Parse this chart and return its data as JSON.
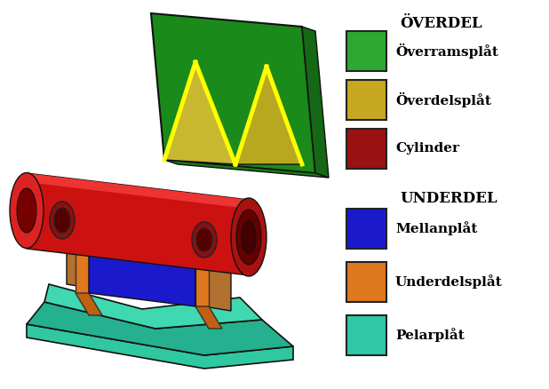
{
  "background_color": "#ffffff",
  "section1_header": "ÖVERDEL",
  "section2_header": "UNDERDEL",
  "items_top": [
    {
      "label": "Överramsplåt",
      "color": "#2ea82e"
    },
    {
      "label": "Överdelsplåt",
      "color": "#c8a820"
    },
    {
      "label": "Cylinder",
      "color": "#991111"
    }
  ],
  "items_bottom": [
    {
      "label": "Mellanplåt",
      "color": "#1a1acc"
    },
    {
      "label": "Underdelsplåt",
      "color": "#e07820"
    },
    {
      "label": "Pelarplåt",
      "color": "#30c8a8"
    }
  ],
  "header_fontsize": 12,
  "label_fontsize": 11,
  "box_edge_color": "#222222",
  "fig_width": 6.18,
  "fig_height": 4.38,
  "dpi": 100
}
